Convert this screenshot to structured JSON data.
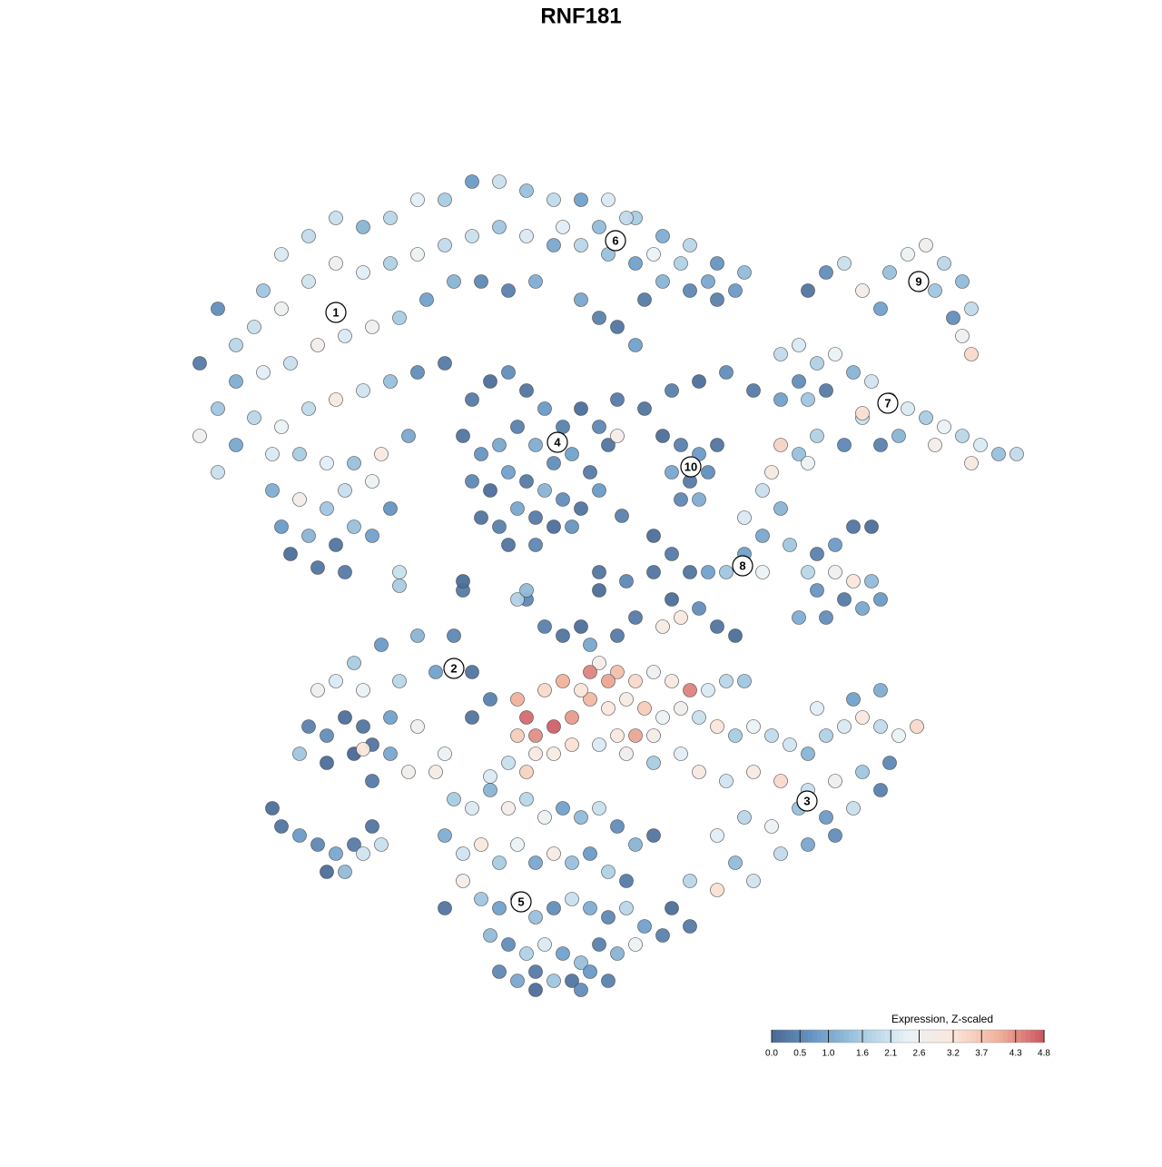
{
  "chart_data": {
    "type": "scatter",
    "title": "RNF181",
    "xlim": [
      -50,
      50
    ],
    "ylim": [
      -50,
      50
    ],
    "x": [
      -40,
      -42,
      -38,
      -35,
      -33,
      -30,
      -27,
      -24,
      -21,
      -18,
      -15,
      -12,
      -9,
      -6,
      -3,
      0,
      3,
      6,
      9,
      12,
      15,
      18,
      -36,
      -33,
      -30,
      -27,
      -24,
      -21,
      -18,
      -15,
      -12,
      -9,
      -6,
      -3,
      0,
      3,
      6,
      9,
      12,
      15,
      -38,
      -35,
      -32,
      -29,
      -26,
      -23,
      -20,
      -17,
      -14,
      -11,
      -8,
      -5,
      0,
      -40,
      -36,
      -33,
      -30,
      -27,
      -24,
      -21,
      -18,
      -15,
      -42,
      -38,
      -34,
      -31,
      -28,
      -25,
      -22,
      -19,
      -40,
      -34,
      -31,
      -28,
      -26,
      -23,
      -33,
      -30,
      -27,
      -25,
      -32,
      -29,
      -26,
      -23,
      -21,
      -12,
      -10,
      -8,
      -6,
      -4,
      -2,
      0,
      2,
      -13,
      -11,
      -9,
      -7,
      -5,
      -3,
      -1,
      1,
      3,
      -12,
      -10,
      -8,
      -6,
      -4,
      -2,
      0,
      2,
      -11,
      -9,
      -7,
      -5,
      -3,
      -1,
      -8,
      -5,
      4,
      7,
      10,
      13,
      16,
      19,
      22,
      25,
      4,
      11,
      13,
      10,
      12,
      14,
      11,
      13,
      15,
      9,
      5,
      8,
      11,
      14,
      17,
      -2,
      2,
      7,
      4,
      6,
      2,
      25,
      27,
      29,
      31,
      34,
      36,
      38,
      40,
      42,
      43,
      41,
      39,
      33,
      42,
      43,
      22,
      24,
      26,
      28,
      30,
      32,
      34,
      36,
      38,
      40,
      42,
      44,
      46,
      48,
      31,
      35,
      39,
      43,
      31,
      27,
      24,
      29,
      33,
      26,
      22,
      24,
      25,
      21,
      20,
      22,
      18,
      20,
      18,
      23,
      26,
      28,
      30,
      32,
      25,
      28,
      30,
      32,
      26,
      29,
      31,
      33,
      24,
      27,
      20,
      16,
      14,
      12,
      18,
      2,
      5,
      8,
      10,
      6,
      9,
      11,
      13,
      15,
      17,
      4,
      0,
      -2,
      -4,
      1,
      -13,
      -6,
      -20,
      -7,
      2,
      4,
      6,
      8,
      10,
      12,
      14,
      16,
      18,
      1,
      3,
      5,
      7,
      9,
      11,
      13,
      15,
      17,
      19,
      21,
      23,
      25,
      27,
      29,
      31,
      33,
      35,
      37,
      26,
      30,
      33,
      34,
      31,
      28,
      25,
      22,
      19,
      16,
      13,
      11,
      8,
      5,
      2,
      18,
      21,
      24,
      27,
      30,
      33,
      15,
      17,
      15,
      19,
      22,
      25,
      28,
      -7,
      -6,
      -5,
      -3,
      -1,
      0,
      -4,
      -2,
      1,
      3,
      -7,
      -5,
      -3,
      -1,
      -8,
      -6,
      4,
      6,
      8,
      -14,
      -18,
      -22,
      -25,
      -27,
      -29,
      -24,
      -20,
      -16,
      -12,
      -10,
      -12,
      -26,
      -28,
      -30,
      -31,
      -28,
      -25,
      -23,
      -23,
      -21,
      -24,
      -21,
      -18,
      -24,
      -19,
      -16,
      -34,
      -33,
      -31,
      -29,
      -27,
      -25,
      -28,
      -26,
      -24,
      -22,
      -23,
      -14,
      -12,
      -10,
      -8,
      -6,
      -4,
      -2,
      0,
      2,
      4,
      6,
      8,
      -15,
      -13,
      -11,
      -9,
      -7,
      -5,
      -3,
      -1,
      1,
      3,
      5,
      -13,
      -11,
      -9,
      -7,
      -5,
      -3,
      -1,
      1,
      3,
      5,
      7,
      9,
      12,
      -15,
      -10,
      -8,
      -6,
      -4,
      -2,
      0,
      2,
      4,
      6,
      -9,
      -7,
      -5,
      -3,
      -1,
      1,
      3,
      -5,
      0,
      10,
      12,
      -20,
      -13,
      -6,
      2,
      8,
      10,
      4.5,
      -10,
      -15
    ],
    "y": [
      28,
      22,
      24,
      30,
      34,
      36,
      38,
      37,
      38,
      40,
      40,
      42,
      42,
      41,
      40,
      40,
      40,
      38,
      36,
      35,
      33,
      32,
      26,
      28,
      31,
      33,
      32,
      33,
      34,
      35,
      36,
      37,
      36,
      35,
      35,
      34,
      33,
      31,
      30,
      29,
      20,
      21,
      22,
      24,
      25,
      26,
      27,
      29,
      31,
      31,
      30,
      31,
      29,
      17,
      16,
      15,
      17,
      18,
      19,
      20,
      21,
      22,
      14,
      13,
      12,
      12,
      11,
      11,
      12,
      14,
      10,
      8,
      7,
      6,
      8,
      9,
      4,
      3,
      2,
      4,
      1,
      -0.5,
      -1,
      3,
      6,
      18,
      20,
      21,
      19,
      17,
      15,
      17,
      15,
      14,
      12,
      13,
      15,
      13,
      11,
      12,
      10,
      13,
      9,
      8,
      10,
      9,
      8,
      7,
      6,
      8,
      5,
      4,
      6,
      5,
      4,
      4,
      2,
      2,
      18,
      17,
      19,
      20,
      21,
      19,
      18,
      18,
      14,
      13,
      12,
      10,
      9,
      10,
      7,
      7,
      13,
      14,
      38,
      34,
      33,
      31,
      30,
      37,
      37,
      29,
      26,
      24,
      27,
      30,
      32,
      33,
      30,
      32,
      34,
      35,
      33,
      31,
      28,
      27,
      30,
      28,
      25,
      23,
      23,
      24,
      22,
      23,
      21,
      20,
      18,
      17,
      16,
      15,
      14,
      13,
      12,
      12,
      16,
      14,
      13,
      11,
      16.5,
      19,
      20,
      13,
      13,
      14,
      13,
      12,
      11,
      10,
      8,
      6,
      5,
      3,
      1,
      2,
      1,
      2,
      4,
      4,
      -1,
      -1,
      -2,
      -2,
      -3,
      -4,
      -5,
      -4,
      -6,
      -6,
      -1,
      -1,
      -1,
      -1,
      -0.5,
      -3,
      -2,
      -1,
      -4,
      -6,
      -7,
      -6,
      -5,
      -7,
      -8,
      -8,
      -7,
      -8,
      -7,
      -9,
      -3,
      -4,
      -2.5,
      -4,
      -11,
      -12,
      -13,
      -12,
      -13,
      -14,
      -14,
      -13,
      -13,
      -15,
      -16,
      -15,
      -16,
      -17,
      -16,
      -17,
      -18,
      -19,
      -18,
      -19,
      -20,
      -21,
      -19,
      -18,
      -17,
      -18,
      -19,
      -18,
      -16,
      -15,
      -14,
      -22,
      -23,
      -24,
      -25,
      -24,
      -23,
      -24,
      -23,
      -21,
      -22,
      -21,
      -20,
      -28,
      -29,
      -27,
      -28,
      -27,
      -25,
      -30,
      -33,
      -36,
      -35,
      -32,
      -31,
      -30,
      -15,
      -17,
      -19,
      -18,
      -17,
      -14,
      -14,
      -13,
      -12,
      -13,
      -19,
      -21,
      -21,
      -20,
      -22,
      -23,
      -19,
      -19,
      -19,
      -8,
      -8,
      -9,
      -11,
      -13,
      -14,
      -14,
      -13,
      -12,
      -12,
      -15,
      -17,
      -17,
      -19,
      -18,
      -21,
      -22,
      -21,
      -20,
      -24,
      -21,
      -18,
      -17,
      -18,
      -20.5,
      -23,
      -23,
      -27,
      -29,
      -30,
      -31,
      -32,
      -31,
      -34,
      -34,
      -32,
      -31,
      -29,
      -26,
      -27,
      -25,
      -27,
      -26,
      -28,
      -27,
      -28,
      -27,
      -29,
      -31,
      -30,
      -30,
      -32,
      -31,
      -33,
      -31,
      -33,
      -32,
      -33,
      -32,
      -34,
      -35,
      -35,
      -37,
      -38,
      -37,
      -39,
      -38,
      -37,
      -38,
      -39,
      -38,
      -40,
      -41,
      -40,
      -38,
      -41,
      -42,
      -43,
      -42,
      -43,
      -44,
      -42,
      -43,
      -42,
      -45,
      -46,
      -45,
      -46,
      -46,
      -45,
      -46,
      -47,
      -47,
      -38,
      -35,
      -1,
      -2,
      -3,
      -1,
      3,
      1,
      5.2,
      -23.5,
      -21
    ],
    "values": [
      0.6,
      0.3,
      1.8,
      1.5,
      2.2,
      1.9,
      2.0,
      1.2,
      1.8,
      2.3,
      1.6,
      0.8,
      2.0,
      1.4,
      1.9,
      0.9,
      2.2,
      1.6,
      1.1,
      1.8,
      0.7,
      1.3,
      2.0,
      2.6,
      2.1,
      2.7,
      2.3,
      1.7,
      2.5,
      1.9,
      2.0,
      1.5,
      2.2,
      1.0,
      1.8,
      1.4,
      0.9,
      1.2,
      0.5,
      0.4,
      1.1,
      2.3,
      2.0,
      2.8,
      2.2,
      2.6,
      1.6,
      0.9,
      1.2,
      0.5,
      0.4,
      1.1,
      1.0,
      1.5,
      1.8,
      2.4,
      1.9,
      3.0,
      2.1,
      1.4,
      0.6,
      0.3,
      2.6,
      1.0,
      2.2,
      1.6,
      2.3,
      1.4,
      3.0,
      1.0,
      2.0,
      1.1,
      2.8,
      1.5,
      2.0,
      2.5,
      0.8,
      1.2,
      0.2,
      1.4,
      0.1,
      0.2,
      0.3,
      0.9,
      0.7,
      0.3,
      0.1,
      0.6,
      0.2,
      0.8,
      0.4,
      0.1,
      0.5,
      0.2,
      0.7,
      1.0,
      0.4,
      1.1,
      0.6,
      0.9,
      0.3,
      0.2,
      0.5,
      0.1,
      0.9,
      0.3,
      1.2,
      0.6,
      0.2,
      0.8,
      0.2,
      0.4,
      1.0,
      0.3,
      0.1,
      0.7,
      0.2,
      0.5,
      0.3,
      0.2,
      0.4,
      0.1,
      0.6,
      0.3,
      0.9,
      1.5,
      2.8,
      0.4,
      0.8,
      1.0,
      0.3,
      0.6,
      0.5,
      1.1,
      0.2,
      0.1,
      1.9,
      2.4,
      1.7,
      1.0,
      0.8,
      2.3,
      1.3,
      0.3,
      0.2,
      0.9,
      0.4,
      0.2,
      0.6,
      2.0,
      2.8,
      1.4,
      2.5,
      2.7,
      1.8,
      1.3,
      1.9,
      0.6,
      1.5,
      0.9,
      2.6,
      3.4,
      1.9,
      2.2,
      1.7,
      2.4,
      1.2,
      2.1,
      1.9,
      2.2,
      1.6,
      2.4,
      1.8,
      2.2,
      1.4,
      1.9,
      2.0,
      1.2,
      2.8,
      3.0,
      3.3,
      0.3,
      0.6,
      0.5,
      0.4,
      1.7,
      3.5,
      1.4,
      2.5,
      3.0,
      2.0,
      1.2,
      2.2,
      1.0,
      0.9,
      1.5,
      0.4,
      0.8,
      0.2,
      0.1,
      1.8,
      2.6,
      3.2,
      1.3,
      0.7,
      0.3,
      1.0,
      0.8,
      1.1,
      0.6,
      2.4,
      1.5,
      0.9,
      0.2,
      2.6,
      0.1,
      0.5,
      0.2,
      0.1,
      0.3,
      2.9,
      3.1,
      0.6,
      0.2,
      0.1,
      0.3,
      0.1,
      0.2,
      0.4,
      1.0,
      0.3,
      0.5,
      1.6,
      1.7,
      2.8,
      3.8,
      3.4,
      2.6,
      3.0,
      4.4,
      2.2,
      1.8,
      1.5,
      3.9,
      3.1,
      2.9,
      3.6,
      2.4,
      2.7,
      2.0,
      3.2,
      1.6,
      2.4,
      1.9,
      2.1,
      1.2,
      1.7,
      2.2,
      3.1,
      1.9,
      2.4,
      3.4,
      2.3,
      0.9,
      1.1,
      0.5,
      1.5,
      2.7,
      2.0,
      3.4,
      2.9,
      2.1,
      3.0,
      2.3,
      1.6,
      2.7,
      2.2,
      1.8,
      2.5,
      1.4,
      0.8,
      2.0,
      0.4,
      2.3,
      1.3,
      3.3,
      2.1,
      1.9,
      1.0,
      0.6,
      4.0,
      4.6,
      4.3,
      4.7,
      4.2,
      3.2,
      3.4,
      4.0,
      4.4,
      4.1,
      3.6,
      3.0,
      2.9,
      3.3,
      2.0,
      3.5,
      3.0,
      4.1,
      2.8,
      0.5,
      1.2,
      0.8,
      1.6,
      2.2,
      2.7,
      2.4,
      1.8,
      0.9,
      0.2,
      0.4,
      0.2,
      0.1,
      0.6,
      0.4,
      1.5,
      0.1,
      0.0,
      0.2,
      0.3,
      1.0,
      0.2,
      0.9,
      2.6,
      3.2,
      2.7,
      2.9,
      0.1,
      0.2,
      0.8,
      0.5,
      1.0,
      0.3,
      0.1,
      1.3,
      2.1,
      2.0,
      0.2,
      1.6,
      2.2,
      1.2,
      2.8,
      1.8,
      2.5,
      0.9,
      1.3,
      2.0,
      0.6,
      1.2,
      0.2,
      1.1,
      2.1,
      3.1,
      1.6,
      2.4,
      1.0,
      2.9,
      1.4,
      0.8,
      1.7,
      0.3,
      2.8,
      1.5,
      0.9,
      2.3,
      1.4,
      0.6,
      2.0,
      1.1,
      0.5,
      1.8,
      0.9,
      0.4,
      0.3,
      0.2,
      1.3,
      0.6,
      1.7,
      2.2,
      0.9,
      1.4,
      0.4,
      1.2,
      2.5,
      0.5,
      1.0,
      0.3,
      1.5,
      0.2,
      0.8,
      0.4,
      0.1,
      0.6,
      0.1,
      1.8,
      2.0,
      0.1,
      1.3,
      0.2,
      0.1,
      0.3,
      0.4,
      2.2,
      2.4
    ],
    "clusters": {
      "labels": [
        "1",
        "2",
        "3",
        "4",
        "5",
        "6",
        "7",
        "8",
        "9",
        "10"
      ],
      "x": [
        -27,
        -14,
        24.9,
        -2.6,
        -6.6,
        3.8,
        33.8,
        17.8,
        37.2,
        12.1
      ],
      "y": [
        27.6,
        -11.6,
        -26.2,
        13.3,
        -37.3,
        35.5,
        17.6,
        -0.3,
        31,
        10.6
      ]
    },
    "colorbar": {
      "title": "Expression, Z-scaled",
      "clim": [
        0,
        4.8
      ],
      "ticks": [
        {
          "value": 0,
          "label": "0.0"
        },
        0.5,
        {
          "value": 1,
          "label": "1.0"
        },
        1.6,
        2.1,
        2.6,
        3.2,
        3.7,
        4.3,
        4.8
      ],
      "colors": [
        "#496893",
        "#6a9bc7",
        "#a8cce3",
        "#eaf2f7",
        "#fbe6da",
        "#f0b29c",
        "#cb5561"
      ]
    },
    "marker_edge_color": "#444444"
  }
}
